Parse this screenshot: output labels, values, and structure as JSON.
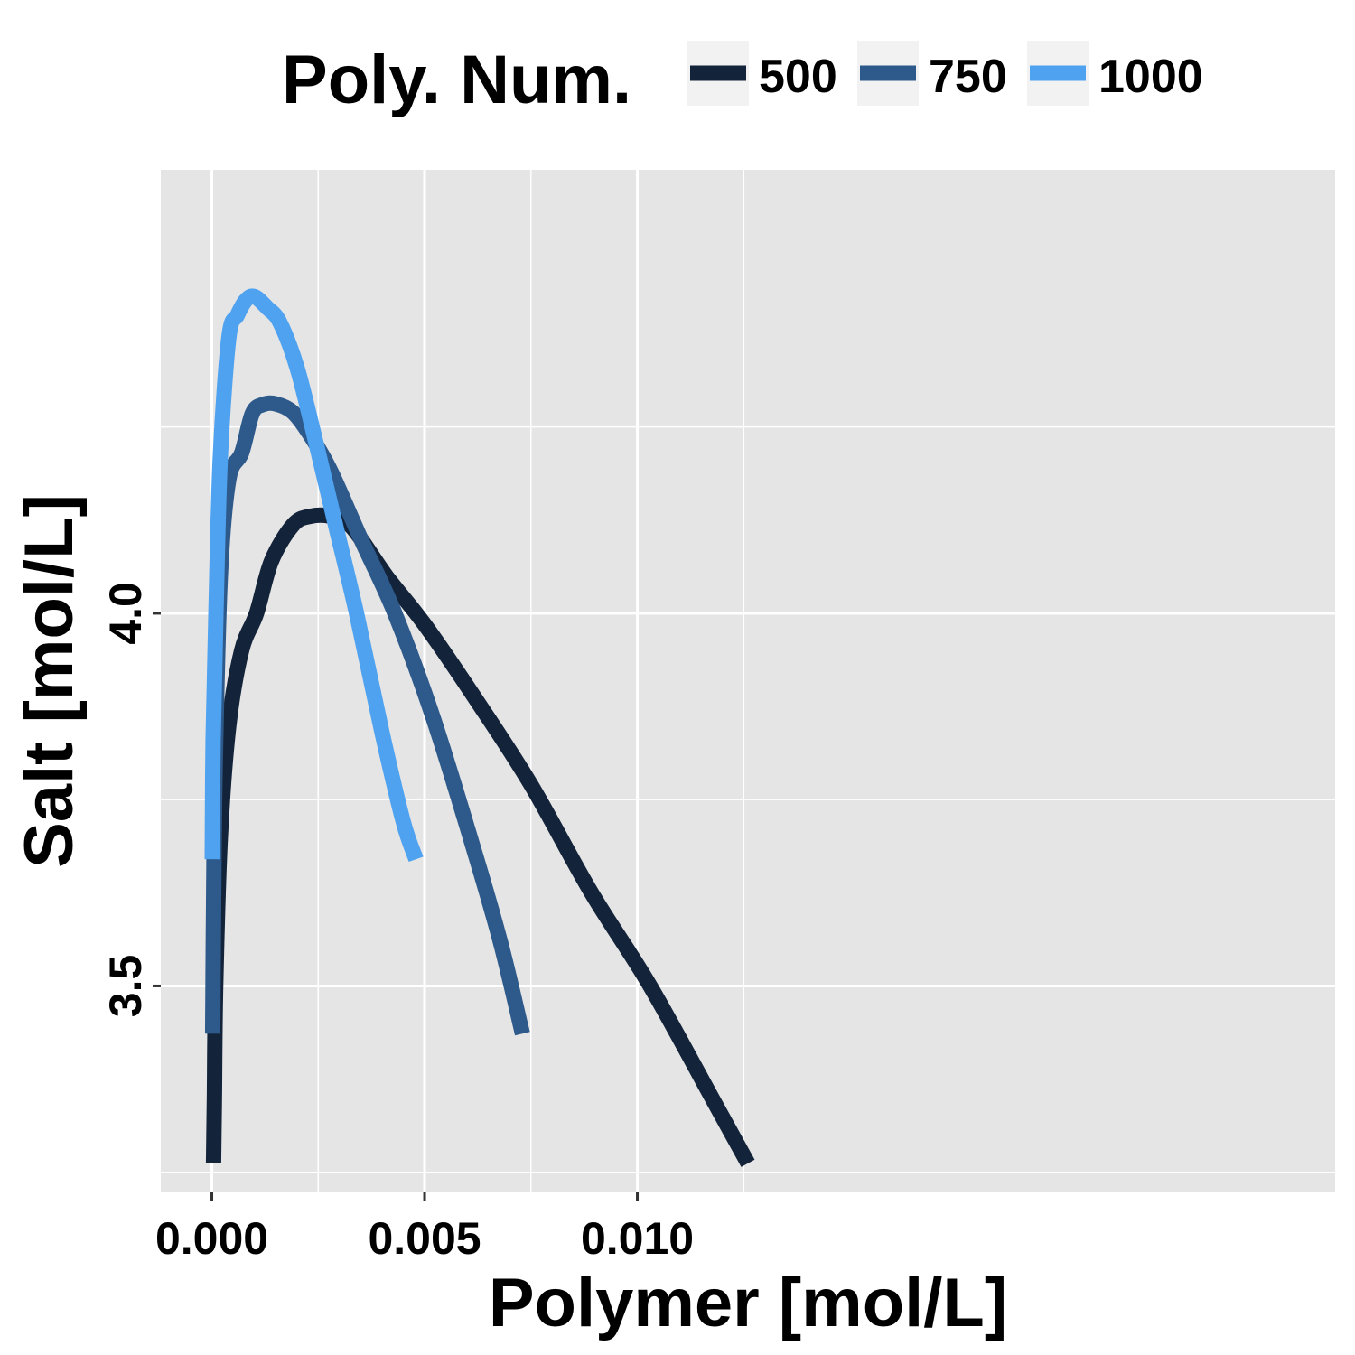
{
  "chart_data": {
    "type": "line",
    "xlabel": "Polymer [mol/L]",
    "ylabel": "Salt [mol/L]",
    "xlim": [
      -0.0012,
      0.0264
    ],
    "ylim": [
      3.223,
      4.595
    ],
    "xticks": [
      0.0,
      0.005,
      0.01
    ],
    "xtick_labels": [
      "0.000",
      "0.005",
      "0.010"
    ],
    "xminor": [
      0.0025,
      0.0075,
      0.0125
    ],
    "yticks": [
      3.5,
      4.0
    ],
    "ytick_labels": [
      "3.5",
      "4.0"
    ],
    "yminor": [
      3.25,
      3.75,
      4.25
    ],
    "panel_background": "#e5e5e5",
    "grid": true,
    "legend": {
      "title": "Poly. Num.",
      "position": "top"
    },
    "series": [
      {
        "name": "500",
        "color": "#132339",
        "x": [
          4e-05,
          6e-05,
          9e-05,
          0.0002,
          0.0004,
          0.0007,
          0.00105,
          0.0014,
          0.0019,
          0.0023,
          0.0028,
          0.0033,
          0.0041,
          0.005,
          0.0062,
          0.0075,
          0.0089,
          0.0103,
          0.0118,
          0.0126
        ],
        "y": [
          3.262,
          3.35,
          3.5,
          3.7,
          3.85,
          3.95,
          4.0,
          4.07,
          4.118,
          4.13,
          4.13,
          4.115,
          4.05,
          3.985,
          3.885,
          3.77,
          3.627,
          3.5,
          3.345,
          3.262
        ]
      },
      {
        "name": "750",
        "color": "#2e5a8b",
        "x": [
          2e-05,
          4e-05,
          8e-05,
          0.0002,
          0.0004,
          0.0007,
          0.00095,
          0.0012,
          0.0015,
          0.0019,
          0.0023,
          0.0028,
          0.0035,
          0.0043,
          0.0052,
          0.0062,
          0.0068,
          0.0073
        ],
        "y": [
          3.436,
          3.6,
          3.8,
          4.05,
          4.18,
          4.215,
          4.268,
          4.28,
          4.281,
          4.27,
          4.24,
          4.19,
          4.1,
          4.0,
          3.86,
          3.675,
          3.555,
          3.436
        ]
      },
      {
        "name": "1000",
        "color": "#4ea2f0",
        "x": [
          1e-05,
          3e-05,
          0.0001,
          0.0002,
          0.0004,
          0.0006,
          0.0008,
          0.001,
          0.0013,
          0.0016,
          0.002,
          0.0024,
          0.0029,
          0.0034,
          0.004,
          0.0045,
          0.0048
        ],
        "y": [
          3.67,
          3.83,
          4.01,
          4.21,
          4.37,
          4.4,
          4.42,
          4.425,
          4.41,
          4.39,
          4.33,
          4.24,
          4.12,
          4.0,
          3.84,
          3.72,
          3.67
        ]
      }
    ]
  }
}
